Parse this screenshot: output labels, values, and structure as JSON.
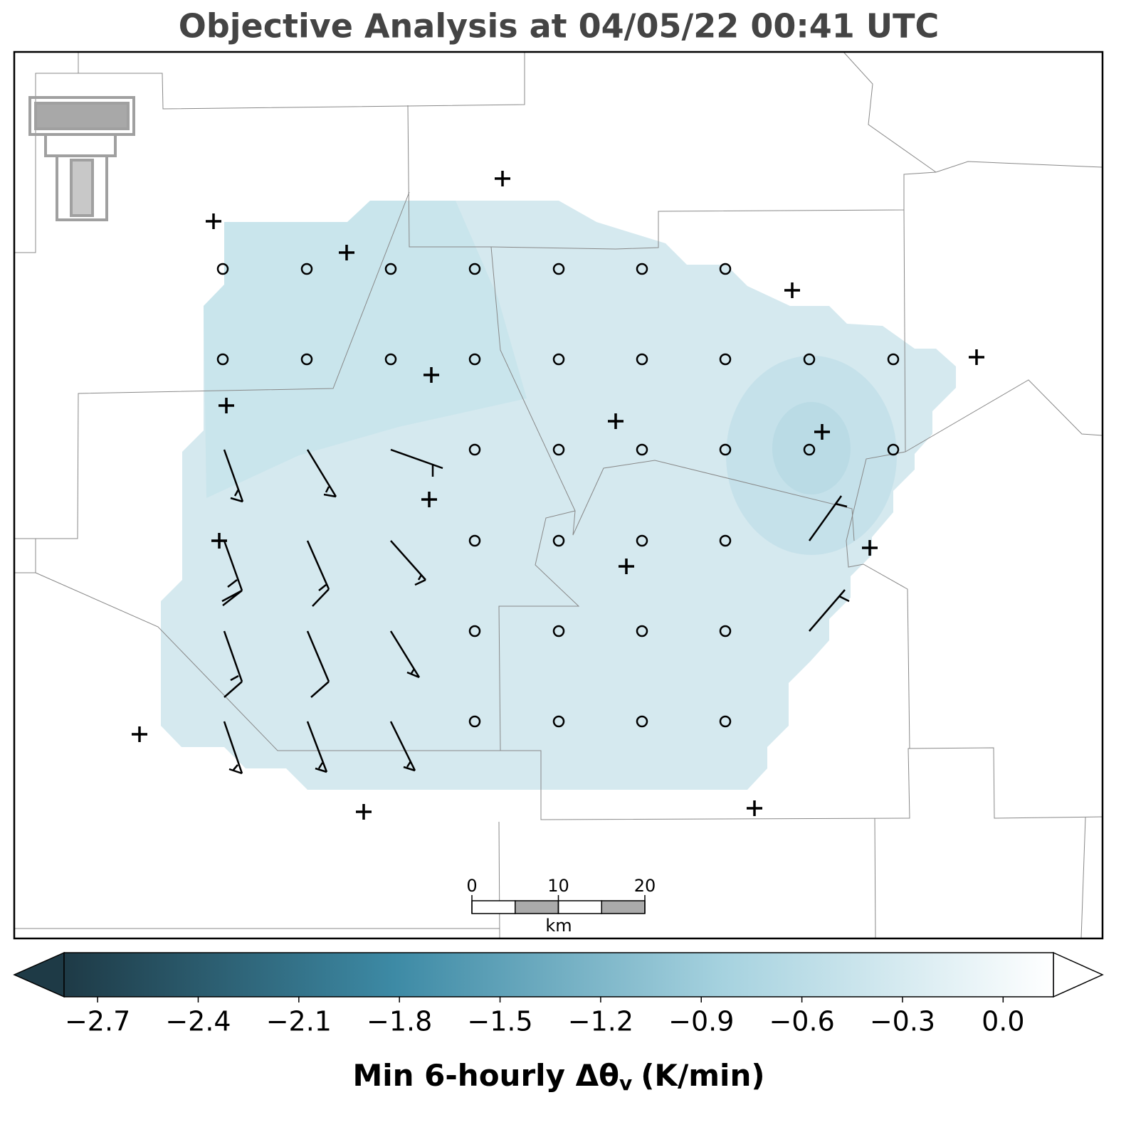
{
  "title": "Objective Analysis at 04/05/22 00:41 UTC",
  "colorbar": {
    "lim": [
      -2.8,
      0.15
    ],
    "colors": [
      "#1e3a46",
      "#3d8aa5",
      "#a6d2df",
      "#ffffff"
    ],
    "ticks": [
      {
        "value": -2.7,
        "label": "−2.7"
      },
      {
        "value": -2.4,
        "label": "−2.4"
      },
      {
        "value": -2.1,
        "label": "−2.1"
      },
      {
        "value": -1.8,
        "label": "−1.8"
      },
      {
        "value": -1.5,
        "label": "−1.5"
      },
      {
        "value": -1.2,
        "label": "−1.2"
      },
      {
        "value": -0.9,
        "label": "−0.9"
      },
      {
        "value": -0.6,
        "label": "−0.6"
      },
      {
        "value": -0.3,
        "label": "−0.3"
      },
      {
        "value": 0,
        "label": "0.0"
      }
    ],
    "label_main": "Min 6-hourly Δθ",
    "label_sub": "v",
    "label_unit": "(K/min)"
  },
  "scale_bar": {
    "ticks": [
      0,
      10,
      20
    ],
    "unit": "km"
  }
}
